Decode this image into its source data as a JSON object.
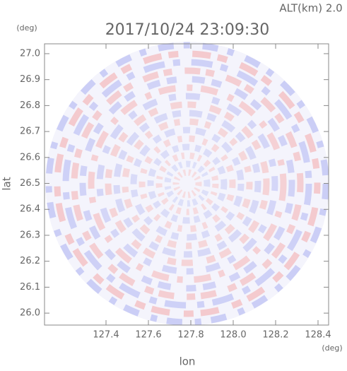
{
  "chart_data": {
    "type": "radar-ppi",
    "title": "2017/10/24 23:09:30",
    "altitude_label": "ALT(km) 2.0",
    "x_label": "lon",
    "y_label": "lat",
    "x_unit": "(deg)",
    "y_unit": "(deg)",
    "xlim": [
      127.11,
      128.45
    ],
    "ylim": [
      25.954,
      27.038
    ],
    "xticks": [
      127.4,
      127.6,
      127.8,
      {
        "value": 128.0,
        "label": "128.0"
      },
      128.2,
      128.4
    ],
    "yticks": [
      {
        "value": 26.0,
        "label": "26.0"
      },
      26.1,
      26.2,
      26.3,
      26.4,
      26.5,
      26.6,
      26.7,
      26.8,
      26.9,
      {
        "value": 27.0,
        "label": "27.0"
      }
    ]
  }
}
